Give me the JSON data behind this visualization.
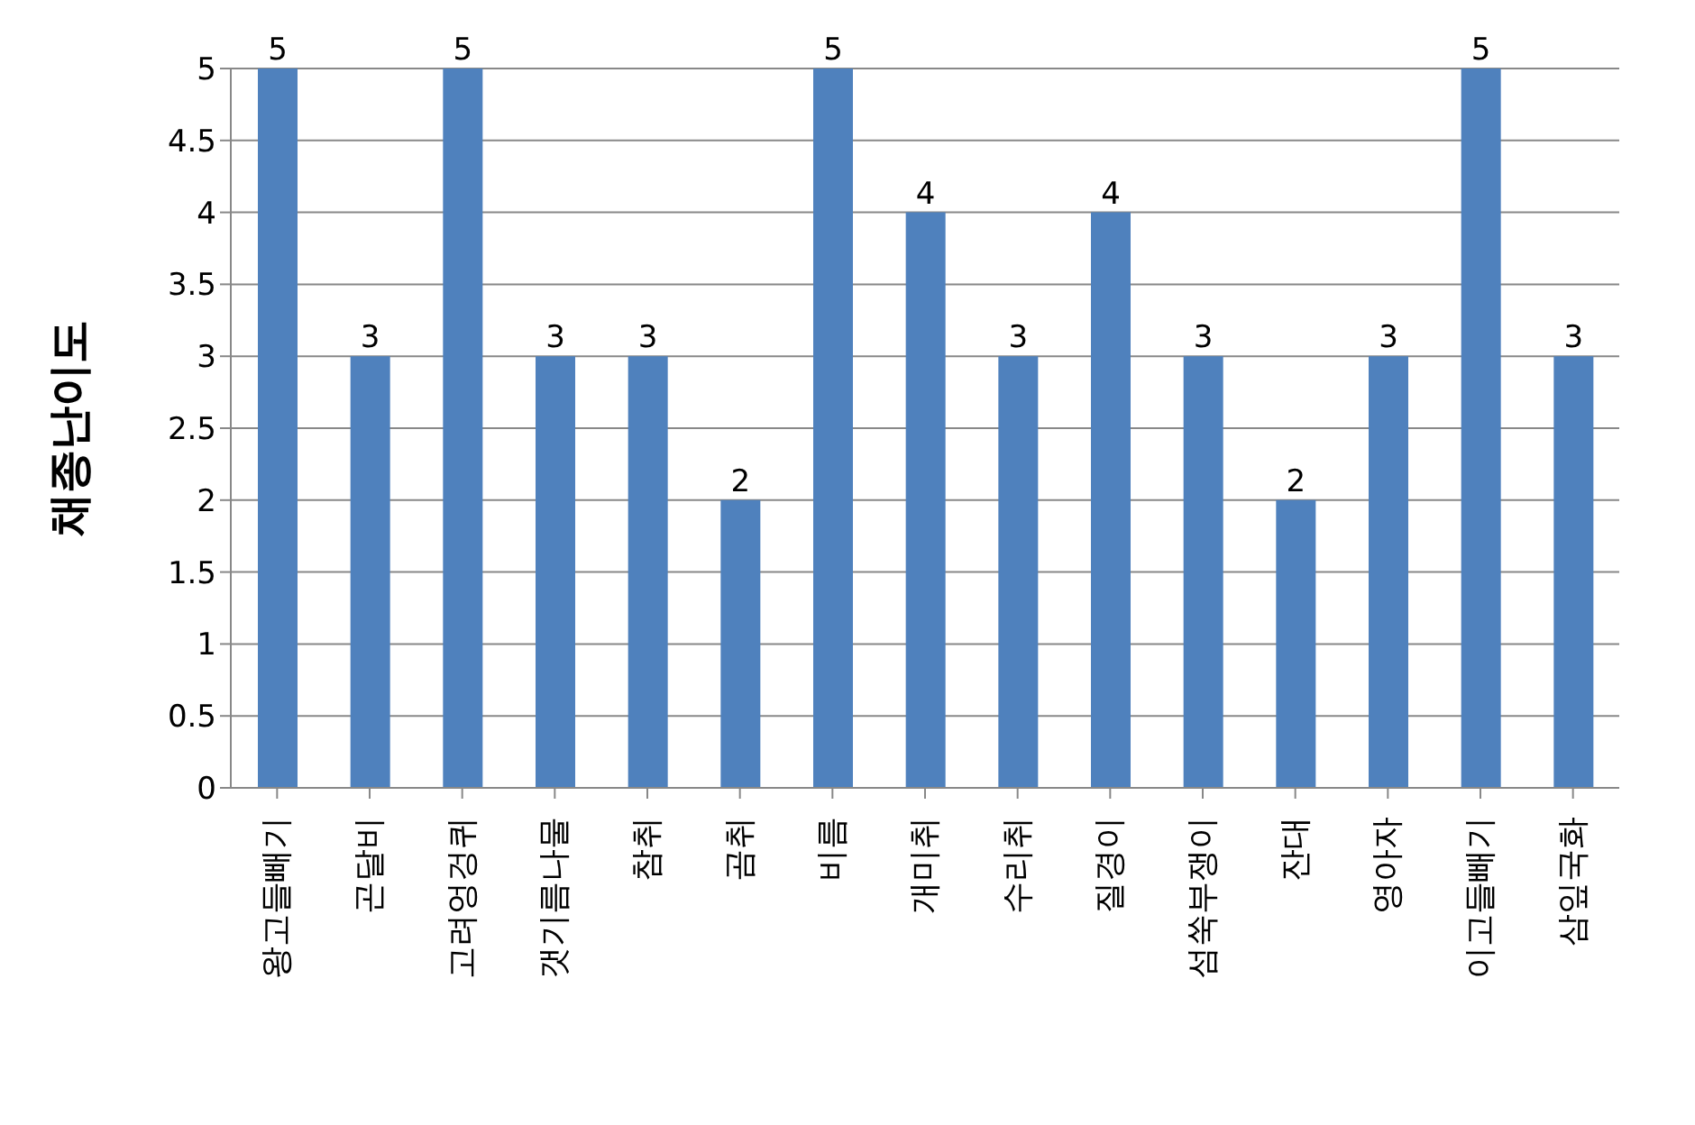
{
  "chart_data": {
    "type": "bar",
    "ylabel": "채종난이도",
    "categories": [
      "왕고들빼기",
      "곤달비",
      "고려엉겅퀴",
      "갯기름나물",
      "참취",
      "곰취",
      "비름",
      "개미취",
      "수리취",
      "질경이",
      "섬쑥부쟁이",
      "잔대",
      "영아자",
      "이고들빼기",
      "삼잎국화"
    ],
    "values": [
      5,
      3,
      5,
      3,
      3,
      2,
      5,
      4,
      3,
      4,
      3,
      2,
      3,
      5,
      3
    ],
    "color": "#4f81bd",
    "ylim": [
      0,
      5
    ],
    "yticks": [
      0,
      0.5,
      1,
      1.5,
      2,
      2.5,
      3,
      3.5,
      4,
      4.5,
      5
    ],
    "grid": "y",
    "data_labels": true
  }
}
